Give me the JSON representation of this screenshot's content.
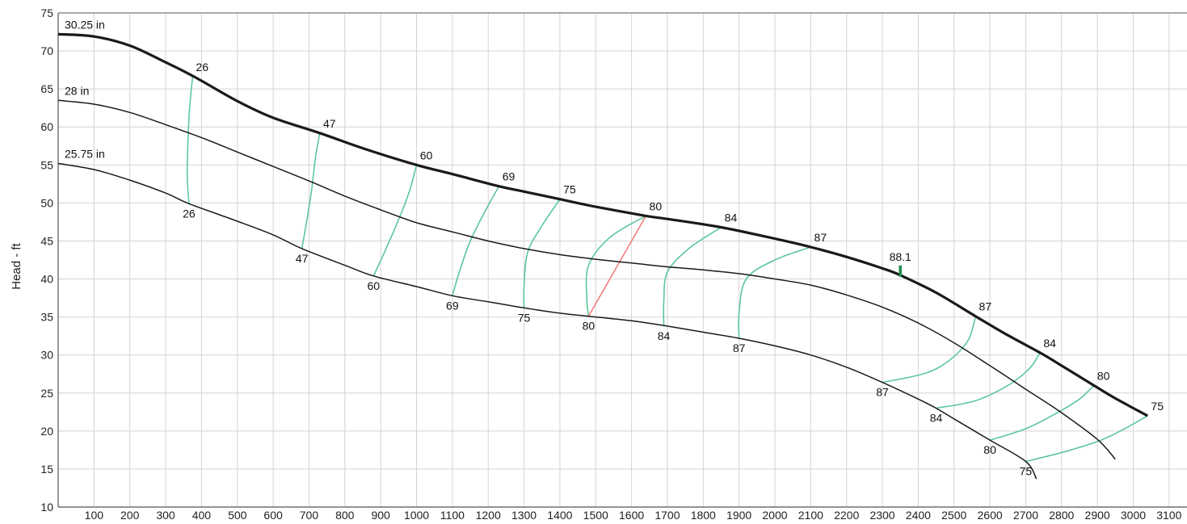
{
  "chart_data": {
    "type": "line",
    "title": "",
    "xlabel": "",
    "ylabel": "Head - ft",
    "xlim": [
      0,
      3150
    ],
    "ylim": [
      10,
      75
    ],
    "grid": true,
    "x_ticks": [
      100,
      200,
      300,
      400,
      500,
      600,
      700,
      800,
      900,
      1000,
      1100,
      1200,
      1300,
      1400,
      1500,
      1600,
      1700,
      1800,
      1900,
      2000,
      2100,
      2200,
      2300,
      2400,
      2500,
      2600,
      2700,
      2800,
      2900,
      3000,
      3100
    ],
    "x_tick_labels": [
      "100",
      "200",
      "300",
      "400",
      "500",
      "600",
      "700",
      "800",
      "900",
      "1000",
      "1100",
      "1200",
      "1300",
      "1400",
      "1500",
      "1600",
      "1700",
      "1800",
      "1900",
      "2000",
      "2100",
      "2200",
      "2300",
      "2400",
      "2500",
      "2600",
      "2700",
      "2800",
      "2900",
      "3000",
      "3100"
    ],
    "y_ticks": [
      10,
      15,
      20,
      25,
      30,
      35,
      40,
      45,
      50,
      55,
      60,
      65,
      70,
      75
    ],
    "y_tick_labels": [
      "10",
      "15",
      "20",
      "25",
      "30",
      "35",
      "40",
      "45",
      "50",
      "55",
      "60",
      "65",
      "70",
      "75"
    ],
    "colors": {
      "curve": "#1a1a1a",
      "efficiency": "#5cc79a",
      "bep_line": "#f08080",
      "bep_marker": "#1f8a4c",
      "grid": "#d4d4d4",
      "axis": "#555555"
    },
    "series": [
      {
        "name": "30.25 in",
        "bold": true,
        "points": [
          [
            0,
            72.2
          ],
          [
            100,
            71.9
          ],
          [
            200,
            70.7
          ],
          [
            300,
            68.5
          ],
          [
            380,
            66.6
          ],
          [
            500,
            63.4
          ],
          [
            600,
            61.2
          ],
          [
            730,
            59.2
          ],
          [
            850,
            57.2
          ],
          [
            1000,
            55.0
          ],
          [
            1100,
            53.8
          ],
          [
            1230,
            52.2
          ],
          [
            1300,
            51.5
          ],
          [
            1400,
            50.5
          ],
          [
            1500,
            49.5
          ],
          [
            1640,
            48.3
          ],
          [
            1700,
            47.9
          ],
          [
            1850,
            46.8
          ],
          [
            2000,
            45.3
          ],
          [
            2100,
            44.2
          ],
          [
            2200,
            42.9
          ],
          [
            2300,
            41.4
          ],
          [
            2350,
            40.5
          ],
          [
            2450,
            38.2
          ],
          [
            2560,
            35.1
          ],
          [
            2650,
            32.6
          ],
          [
            2740,
            30.3
          ],
          [
            2800,
            28.6
          ],
          [
            2890,
            26.0
          ],
          [
            2950,
            24.3
          ],
          [
            3040,
            22.0
          ]
        ]
      },
      {
        "name": "28 in",
        "bold": false,
        "points": [
          [
            0,
            63.5
          ],
          [
            100,
            63.0
          ],
          [
            200,
            61.9
          ],
          [
            300,
            60.3
          ],
          [
            400,
            58.6
          ],
          [
            500,
            56.7
          ],
          [
            600,
            54.8
          ],
          [
            700,
            52.9
          ],
          [
            800,
            50.9
          ],
          [
            900,
            49.1
          ],
          [
            1000,
            47.4
          ],
          [
            1100,
            46.2
          ],
          [
            1200,
            45.0
          ],
          [
            1300,
            44.0
          ],
          [
            1400,
            43.2
          ],
          [
            1500,
            42.6
          ],
          [
            1600,
            42.1
          ],
          [
            1700,
            41.6
          ],
          [
            1800,
            41.2
          ],
          [
            1900,
            40.7
          ],
          [
            2000,
            40.0
          ],
          [
            2100,
            39.2
          ],
          [
            2200,
            37.9
          ],
          [
            2300,
            36.3
          ],
          [
            2400,
            34.2
          ],
          [
            2500,
            31.6
          ],
          [
            2600,
            28.6
          ],
          [
            2700,
            25.5
          ],
          [
            2800,
            22.4
          ],
          [
            2900,
            18.9
          ],
          [
            2950,
            16.3
          ]
        ]
      },
      {
        "name": "25.75 in",
        "bold": false,
        "points": [
          [
            0,
            55.2
          ],
          [
            100,
            54.4
          ],
          [
            200,
            53.0
          ],
          [
            300,
            51.3
          ],
          [
            365,
            49.9
          ],
          [
            500,
            47.6
          ],
          [
            600,
            45.8
          ],
          [
            680,
            44.0
          ],
          [
            800,
            41.8
          ],
          [
            880,
            40.4
          ],
          [
            1000,
            39.0
          ],
          [
            1100,
            37.8
          ],
          [
            1200,
            37.0
          ],
          [
            1300,
            36.2
          ],
          [
            1400,
            35.5
          ],
          [
            1480,
            35.1
          ],
          [
            1600,
            34.5
          ],
          [
            1700,
            33.8
          ],
          [
            1800,
            33.0
          ],
          [
            1900,
            32.2
          ],
          [
            2000,
            31.2
          ],
          [
            2100,
            30.0
          ],
          [
            2200,
            28.4
          ],
          [
            2300,
            26.4
          ],
          [
            2400,
            24.2
          ],
          [
            2450,
            23.0
          ],
          [
            2500,
            21.6
          ],
          [
            2600,
            18.8
          ],
          [
            2700,
            16.0
          ],
          [
            2730,
            13.7
          ]
        ]
      }
    ],
    "efficiency_lines": [
      {
        "label": "26",
        "points": [
          [
            365,
            49.9
          ],
          [
            360,
            53.5
          ],
          [
            362,
            57.7
          ],
          [
            366,
            62.0
          ],
          [
            375,
            66.6
          ]
        ]
      },
      {
        "label": "47",
        "points": [
          [
            680,
            44.0
          ],
          [
            695,
            48.0
          ],
          [
            708,
            52.0
          ],
          [
            718,
            56.0
          ],
          [
            730,
            59.2
          ]
        ]
      },
      {
        "label": "60",
        "points": [
          [
            880,
            40.4
          ],
          [
            915,
            44.0
          ],
          [
            950,
            47.8
          ],
          [
            980,
            51.5
          ],
          [
            1000,
            55.0
          ]
        ]
      },
      {
        "label": "69",
        "points": [
          [
            1100,
            37.8
          ],
          [
            1120,
            41.0
          ],
          [
            1150,
            45.0
          ],
          [
            1190,
            48.8
          ],
          [
            1230,
            52.2
          ]
        ]
      },
      {
        "label": "75",
        "points": [
          [
            1300,
            36.2
          ],
          [
            1300,
            39.0
          ],
          [
            1310,
            43.5
          ],
          [
            1350,
            47.0
          ],
          [
            1400,
            50.5
          ]
        ]
      },
      {
        "label": "80",
        "points": [
          [
            1480,
            35.1
          ],
          [
            1475,
            37.5
          ],
          [
            1480,
            41.8
          ],
          [
            1540,
            45.5
          ],
          [
            1640,
            48.3
          ]
        ]
      },
      {
        "label": "84",
        "points": [
          [
            1690,
            33.8
          ],
          [
            1690,
            37.0
          ],
          [
            1700,
            40.9
          ],
          [
            1760,
            44.0
          ],
          [
            1850,
            46.8
          ]
        ]
      },
      {
        "label": "87",
        "points": [
          [
            1900,
            32.2
          ],
          [
            1900,
            35.5
          ],
          [
            1920,
            40.0
          ],
          [
            2000,
            42.5
          ],
          [
            2100,
            44.2
          ]
        ]
      },
      {
        "label": "87",
        "points": [
          [
            2300,
            26.4
          ],
          [
            2420,
            27.6
          ],
          [
            2490,
            29.4
          ],
          [
            2540,
            32.0
          ],
          [
            2560,
            35.1
          ]
        ]
      },
      {
        "label": "84",
        "points": [
          [
            2450,
            23.0
          ],
          [
            2560,
            24.0
          ],
          [
            2650,
            26.0
          ],
          [
            2710,
            28.2
          ],
          [
            2740,
            30.3
          ]
        ]
      },
      {
        "label": "80",
        "points": [
          [
            2600,
            18.8
          ],
          [
            2700,
            20.3
          ],
          [
            2780,
            22.2
          ],
          [
            2850,
            24.2
          ],
          [
            2890,
            26.0
          ]
        ]
      },
      {
        "label": "75",
        "points": [
          [
            2700,
            16.0
          ],
          [
            2810,
            17.3
          ],
          [
            2910,
            18.8
          ],
          [
            2980,
            20.4
          ],
          [
            3040,
            22.0
          ]
        ]
      }
    ],
    "bep_line": {
      "points": [
        [
          1480,
          35.1
        ],
        [
          1640,
          48.3
        ]
      ]
    },
    "bep_marker": {
      "label": "88.1",
      "x": 2350,
      "y": 40.5
    }
  }
}
